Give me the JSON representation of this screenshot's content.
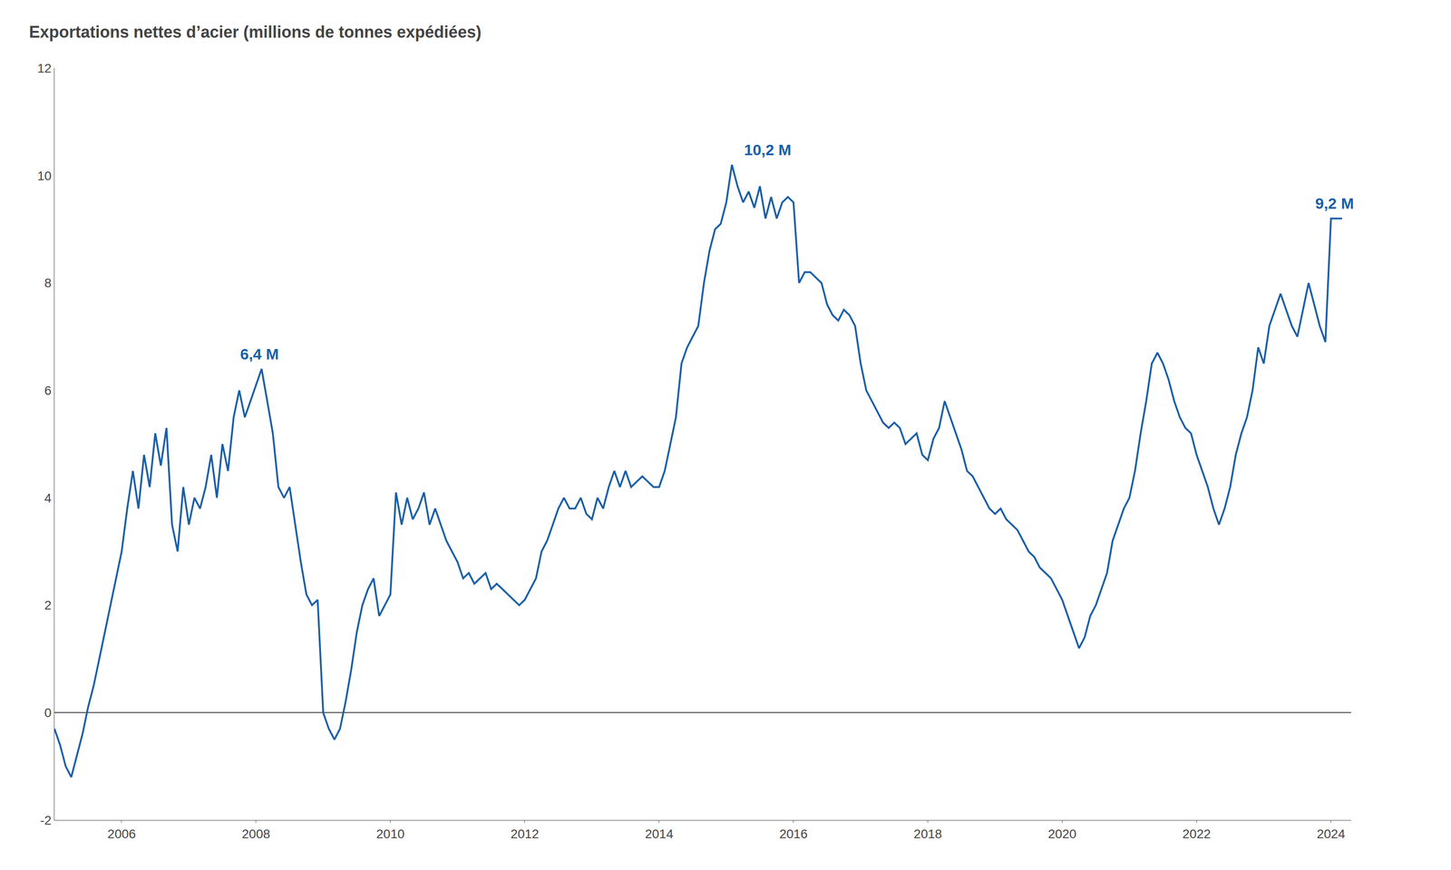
{
  "chart_data": {
    "type": "line",
    "title": "Exportations nettes d’acier (millions de tonnes expédiées)",
    "color": "#1a5fa8",
    "grid": false,
    "xlim": [
      2005.0,
      2024.3
    ],
    "xticks": [
      2006,
      2008,
      2010,
      2012,
      2014,
      2016,
      2018,
      2020,
      2022,
      2024
    ],
    "ylim": [
      -2,
      12
    ],
    "yticks": [
      -2,
      0,
      2,
      4,
      6,
      8,
      10,
      12
    ],
    "annotations": [
      {
        "x": 2007.75,
        "y": 6.4,
        "text": "6,4 M"
      },
      {
        "x": 2015.25,
        "y": 10.2,
        "text": "10,2 M"
      },
      {
        "x": 2023.75,
        "y": 9.2,
        "text": "9,2 M"
      }
    ],
    "x": [
      2005.0,
      2005.083,
      2005.167,
      2005.25,
      2005.333,
      2005.417,
      2005.5,
      2005.583,
      2005.667,
      2005.75,
      2005.833,
      2005.917,
      2006.0,
      2006.083,
      2006.167,
      2006.25,
      2006.333,
      2006.417,
      2006.5,
      2006.583,
      2006.667,
      2006.75,
      2006.833,
      2006.917,
      2007.0,
      2007.083,
      2007.167,
      2007.25,
      2007.333,
      2007.417,
      2007.5,
      2007.583,
      2007.667,
      2007.75,
      2007.833,
      2007.917,
      2008.0,
      2008.083,
      2008.167,
      2008.25,
      2008.333,
      2008.417,
      2008.5,
      2008.583,
      2008.667,
      2008.75,
      2008.833,
      2008.917,
      2009.0,
      2009.083,
      2009.167,
      2009.25,
      2009.333,
      2009.417,
      2009.5,
      2009.583,
      2009.667,
      2009.75,
      2009.833,
      2009.917,
      2010.0,
      2010.083,
      2010.167,
      2010.25,
      2010.333,
      2010.417,
      2010.5,
      2010.583,
      2010.667,
      2010.75,
      2010.833,
      2010.917,
      2011.0,
      2011.083,
      2011.167,
      2011.25,
      2011.333,
      2011.417,
      2011.5,
      2011.583,
      2011.667,
      2011.75,
      2011.833,
      2011.917,
      2012.0,
      2012.083,
      2012.167,
      2012.25,
      2012.333,
      2012.417,
      2012.5,
      2012.583,
      2012.667,
      2012.75,
      2012.833,
      2012.917,
      2013.0,
      2013.083,
      2013.167,
      2013.25,
      2013.333,
      2013.417,
      2013.5,
      2013.583,
      2013.667,
      2013.75,
      2013.833,
      2013.917,
      2014.0,
      2014.083,
      2014.167,
      2014.25,
      2014.333,
      2014.417,
      2014.5,
      2014.583,
      2014.667,
      2014.75,
      2014.833,
      2014.917,
      2015.0,
      2015.083,
      2015.167,
      2015.25,
      2015.333,
      2015.417,
      2015.5,
      2015.583,
      2015.667,
      2015.75,
      2015.833,
      2015.917,
      2016.0,
      2016.083,
      2016.167,
      2016.25,
      2016.333,
      2016.417,
      2016.5,
      2016.583,
      2016.667,
      2016.75,
      2016.833,
      2016.917,
      2017.0,
      2017.083,
      2017.167,
      2017.25,
      2017.333,
      2017.417,
      2017.5,
      2017.583,
      2017.667,
      2017.75,
      2017.833,
      2017.917,
      2018.0,
      2018.083,
      2018.167,
      2018.25,
      2018.333,
      2018.417,
      2018.5,
      2018.583,
      2018.667,
      2018.75,
      2018.833,
      2018.917,
      2019.0,
      2019.083,
      2019.167,
      2019.25,
      2019.333,
      2019.417,
      2019.5,
      2019.583,
      2019.667,
      2019.75,
      2019.833,
      2019.917,
      2020.0,
      2020.083,
      2020.167,
      2020.25,
      2020.333,
      2020.417,
      2020.5,
      2020.583,
      2020.667,
      2020.75,
      2020.833,
      2020.917,
      2021.0,
      2021.083,
      2021.167,
      2021.25,
      2021.333,
      2021.417,
      2021.5,
      2021.583,
      2021.667,
      2021.75,
      2021.833,
      2021.917,
      2022.0,
      2022.083,
      2022.167,
      2022.25,
      2022.333,
      2022.417,
      2022.5,
      2022.583,
      2022.667,
      2022.75,
      2022.833,
      2022.917,
      2023.0,
      2023.083,
      2023.167,
      2023.25,
      2023.333,
      2023.417,
      2023.5,
      2023.583,
      2023.667,
      2023.75,
      2023.833,
      2023.917,
      2024.0,
      2024.167
    ],
    "values": [
      -0.3,
      -0.6,
      -1.0,
      -1.2,
      -0.8,
      -0.4,
      0.1,
      0.5,
      1.0,
      1.5,
      2.0,
      2.5,
      3.0,
      3.8,
      4.5,
      3.8,
      4.8,
      4.2,
      5.2,
      4.6,
      5.3,
      3.5,
      3.0,
      4.2,
      3.5,
      4.0,
      3.8,
      4.2,
      4.8,
      4.0,
      5.0,
      4.5,
      5.5,
      6.0,
      5.5,
      5.8,
      6.1,
      6.4,
      5.8,
      5.2,
      4.2,
      4.0,
      4.2,
      3.5,
      2.8,
      2.2,
      2.0,
      2.1,
      0.0,
      -0.3,
      -0.5,
      -0.3,
      0.2,
      0.8,
      1.5,
      2.0,
      2.3,
      2.5,
      1.8,
      2.0,
      2.2,
      4.1,
      3.5,
      4.0,
      3.6,
      3.8,
      4.1,
      3.5,
      3.8,
      3.5,
      3.2,
      3.0,
      2.8,
      2.5,
      2.6,
      2.4,
      2.5,
      2.6,
      2.3,
      2.4,
      2.3,
      2.2,
      2.1,
      2.0,
      2.1,
      2.3,
      2.5,
      3.0,
      3.2,
      3.5,
      3.8,
      4.0,
      3.8,
      3.8,
      4.0,
      3.7,
      3.6,
      4.0,
      3.8,
      4.2,
      4.5,
      4.2,
      4.5,
      4.2,
      4.3,
      4.4,
      4.3,
      4.2,
      4.2,
      4.5,
      5.0,
      5.5,
      6.5,
      6.8,
      7.0,
      7.2,
      8.0,
      8.6,
      9.0,
      9.1,
      9.5,
      10.2,
      9.8,
      9.5,
      9.7,
      9.4,
      9.8,
      9.2,
      9.6,
      9.2,
      9.5,
      9.6,
      9.5,
      8.0,
      8.2,
      8.2,
      8.1,
      8.0,
      7.6,
      7.4,
      7.3,
      7.5,
      7.4,
      7.2,
      6.5,
      6.0,
      5.8,
      5.6,
      5.4,
      5.3,
      5.4,
      5.3,
      5.0,
      5.1,
      5.2,
      4.8,
      4.7,
      5.1,
      5.3,
      5.8,
      5.5,
      5.2,
      4.9,
      4.5,
      4.4,
      4.2,
      4.0,
      3.8,
      3.7,
      3.8,
      3.6,
      3.5,
      3.4,
      3.2,
      3.0,
      2.9,
      2.7,
      2.6,
      2.5,
      2.3,
      2.1,
      1.8,
      1.5,
      1.2,
      1.4,
      1.8,
      2.0,
      2.3,
      2.6,
      3.2,
      3.5,
      3.8,
      4.0,
      4.5,
      5.2,
      5.8,
      6.5,
      6.7,
      6.5,
      6.2,
      5.8,
      5.5,
      5.3,
      5.2,
      4.8,
      4.5,
      4.2,
      3.8,
      3.5,
      3.8,
      4.2,
      4.8,
      5.2,
      5.5,
      6.0,
      6.8,
      6.5,
      7.2,
      7.5,
      7.8,
      7.5,
      7.2,
      7.0,
      7.5,
      8.0,
      7.6,
      7.2,
      6.9,
      9.2,
      9.2
    ]
  }
}
